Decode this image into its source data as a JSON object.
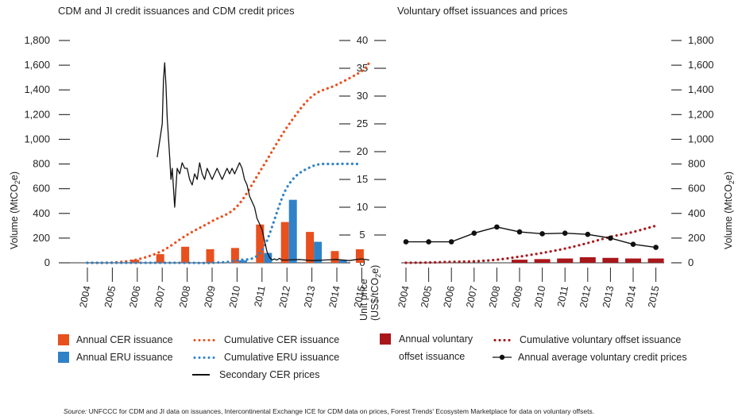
{
  "colors": {
    "cer": "#e8501e",
    "eru": "#2f82c8",
    "vol": "#a9171b",
    "line": "#111111"
  },
  "chart_data": [
    {
      "type": "bar",
      "title": "CDM and JI credit issuances and CDM credit prices",
      "ylabel": "Volume (MtCO2e)",
      "y2label": "Unit price (US$/tCO2e)",
      "ylim": [
        0,
        1800
      ],
      "y2lim": [
        0,
        40
      ],
      "yticks": [
        "0",
        "200",
        "400",
        "600",
        "800",
        "1,000",
        "1,200",
        "1,400",
        "1,600",
        "1,800"
      ],
      "y2ticks": [
        "0",
        "5",
        "10",
        "15",
        "20",
        "25",
        "30",
        "35",
        "40"
      ],
      "categories": [
        "2004",
        "2005",
        "2006",
        "2007",
        "2008",
        "2009",
        "2010",
        "2011",
        "2012",
        "2013",
        "2014",
        "2015"
      ],
      "series": [
        {
          "name": "Annual CER issuance",
          "kind": "bar",
          "values": [
            0,
            0,
            25,
            70,
            130,
            110,
            120,
            310,
            330,
            250,
            95,
            110
          ]
        },
        {
          "name": "Annual ERU issuance",
          "kind": "bar",
          "values": [
            0,
            0,
            0,
            0,
            0,
            0,
            20,
            80,
            510,
            170,
            20,
            0
          ]
        },
        {
          "name": "Cumulative CER issuance",
          "kind": "dotted",
          "values": [
            0,
            2,
            27,
            97,
            227,
            337,
            457,
            767,
            1097,
            1347,
            1442,
            1552
          ],
          "x_end": 2015.3,
          "y_end": 1620
        },
        {
          "name": "Cumulative ERU issuance",
          "kind": "dotted",
          "values": [
            0,
            0,
            0,
            0,
            0,
            0,
            20,
            100,
            610,
            780,
            800,
            800
          ]
        },
        {
          "name": "Secondary CER prices",
          "kind": "line",
          "axis": "right",
          "points": [
            [
              2006.8,
              19
            ],
            [
              2006.9,
              22
            ],
            [
              2007.0,
              25
            ],
            [
              2007.05,
              33
            ],
            [
              2007.1,
              36
            ],
            [
              2007.15,
              32
            ],
            [
              2007.2,
              26
            ],
            [
              2007.3,
              19
            ],
            [
              2007.35,
              15
            ],
            [
              2007.4,
              17
            ],
            [
              2007.5,
              10
            ],
            [
              2007.6,
              17
            ],
            [
              2007.7,
              16
            ],
            [
              2007.8,
              18
            ],
            [
              2007.9,
              17
            ],
            [
              2008.0,
              17
            ],
            [
              2008.1,
              15
            ],
            [
              2008.2,
              14
            ],
            [
              2008.3,
              16
            ],
            [
              2008.4,
              15
            ],
            [
              2008.5,
              18
            ],
            [
              2008.6,
              16
            ],
            [
              2008.7,
              15
            ],
            [
              2008.8,
              17
            ],
            [
              2008.9,
              16
            ],
            [
              2009.0,
              15
            ],
            [
              2009.1,
              16
            ],
            [
              2009.2,
              17
            ],
            [
              2009.3,
              16
            ],
            [
              2009.4,
              15
            ],
            [
              2009.5,
              16
            ],
            [
              2009.6,
              17
            ],
            [
              2009.7,
              16
            ],
            [
              2009.8,
              17
            ],
            [
              2009.9,
              16
            ],
            [
              2010.0,
              17
            ],
            [
              2010.1,
              18
            ],
            [
              2010.2,
              17
            ],
            [
              2010.3,
              15
            ],
            [
              2010.4,
              14
            ],
            [
              2010.5,
              12
            ],
            [
              2010.6,
              11
            ],
            [
              2010.7,
              10
            ],
            [
              2010.8,
              8
            ],
            [
              2010.9,
              7
            ],
            [
              2011.0,
              6
            ],
            [
              2011.1,
              4
            ],
            [
              2011.2,
              2
            ],
            [
              2011.3,
              1
            ],
            [
              2011.4,
              0.5
            ],
            [
              2011.5,
              0.7
            ],
            [
              2011.6,
              0.5
            ],
            [
              2011.7,
              0.8
            ],
            [
              2011.8,
              0.5
            ],
            [
              2012.0,
              0.5
            ],
            [
              2012.5,
              0.6
            ],
            [
              2013.0,
              0.4
            ],
            [
              2013.5,
              0.5
            ],
            [
              2014.0,
              0.6
            ],
            [
              2014.5,
              0.4
            ],
            [
              2014.8,
              0.6
            ],
            [
              2015.0,
              0.7
            ],
            [
              2015.3,
              0.5
            ]
          ]
        }
      ]
    },
    {
      "type": "bar",
      "title": "Voluntary offset issuances and prices",
      "ylabel": "Volume (MtCO2e)",
      "ylim": [
        0,
        1800
      ],
      "yticks": [
        "0",
        "200",
        "400",
        "600",
        "800",
        "1,000",
        "1,200",
        "1,400",
        "1,600",
        "1,800"
      ],
      "categories": [
        "2004",
        "2005",
        "2006",
        "2007",
        "2008",
        "2009",
        "2010",
        "2011",
        "2012",
        "2013",
        "2014",
        "2015"
      ],
      "series": [
        {
          "name": "Annual voluntary offset issuance",
          "kind": "bar",
          "values": [
            0,
            0,
            0,
            0,
            0,
            25,
            30,
            35,
            45,
            40,
            35,
            35
          ]
        },
        {
          "name": "Cumulative voluntary offset issuance",
          "kind": "dotted",
          "values": [
            0,
            2,
            8,
            12,
            25,
            50,
            80,
            115,
            160,
            210,
            250,
            300
          ]
        },
        {
          "name": "Annual average voluntary credit prices",
          "kind": "line-markers",
          "values": [
            170,
            170,
            170,
            240,
            290,
            250,
            235,
            240,
            230,
            200,
            150,
            125
          ]
        }
      ]
    }
  ],
  "legend": {
    "cer_bar": "Annual CER issuance",
    "eru_bar": "Annual ERU issuance",
    "cer_cum": "Cumulative CER issuance",
    "eru_cum": "Cumulative ERU issuance",
    "cer_price": "Secondary CER prices",
    "vol_bar_line1": "Annual voluntary",
    "vol_bar_line2": "offset issuance",
    "vol_cum": "Cumulative voluntary offset issuance",
    "vol_price": "Annual average voluntary credit prices"
  },
  "source": {
    "label": "Source:",
    "text": " UNFCCC for CDM and JI data on issuances, Intercontinental Exchange ICE for CDM data on prices, Forest Trends' Ecosystem Marketplace for data on voluntary offsets."
  }
}
